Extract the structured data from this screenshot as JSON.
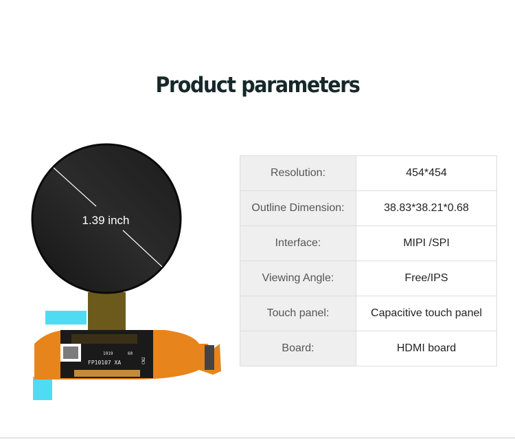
{
  "title": "Product parameters",
  "product_image": {
    "diagonal_label": "1.39 inch",
    "board_print": [
      "FP10107 XA",
      "1919",
      "60",
      "CN2"
    ],
    "colors": {
      "screen": "#222222",
      "flex": "#e8841c",
      "tape": "#4fd8f0"
    }
  },
  "specs": [
    {
      "label": "Resolution:",
      "value": "454*454"
    },
    {
      "label": "Outline Dimension:",
      "value": "38.83*38.21*0.68"
    },
    {
      "label": "Interface:",
      "value": "MIPI /SPI"
    },
    {
      "label": "Viewing Angle:",
      "value": "Free/IPS"
    },
    {
      "label": "Touch panel:",
      "value": "Capacitive touch panel"
    },
    {
      "label": "Board:",
      "value": "HDMI board"
    }
  ]
}
